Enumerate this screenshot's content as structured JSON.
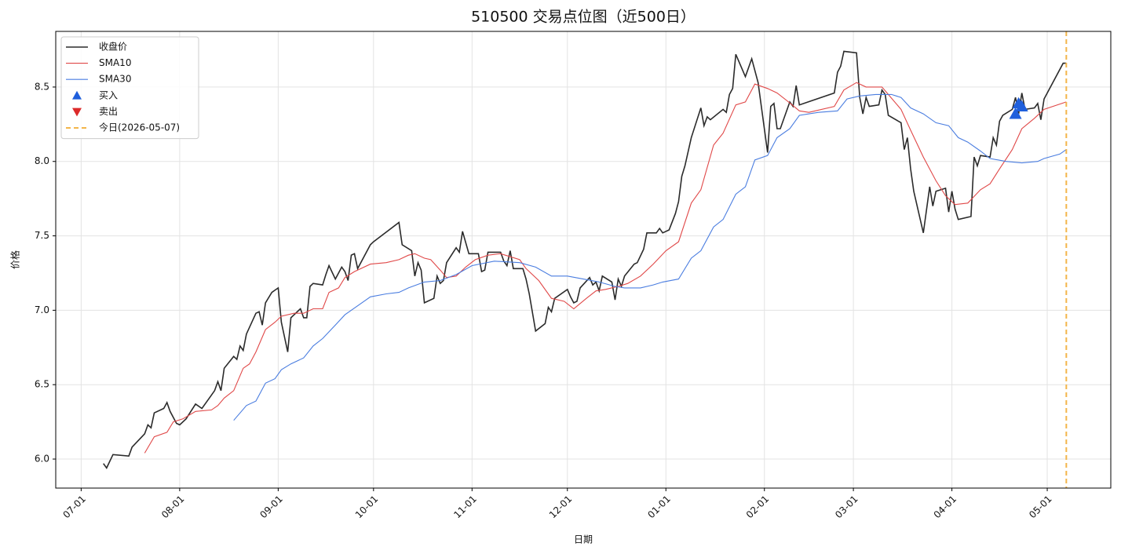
{
  "chart_data": {
    "type": "line",
    "title": "510500 交易点位图（近500日）",
    "x_label": "日期",
    "y_label": "价格",
    "xlim": [
      "06-23",
      "05-21"
    ],
    "xticks": [
      "07-01",
      "08-01",
      "09-01",
      "10-01",
      "11-01",
      "12-01",
      "01-01",
      "02-01",
      "03-01",
      "04-01",
      "05-01"
    ],
    "ylim": [
      5.805,
      8.874
    ],
    "yticks": [
      {
        "value": 6,
        "label": "6.0"
      },
      6.5,
      {
        "value": 7,
        "label": "7.0"
      },
      7.5,
      {
        "value": 8,
        "label": "8.0"
      },
      8.5
    ],
    "grid": true,
    "legend": "upper left",
    "series": [
      {
        "name": "收盘价",
        "color": "#2b2b2b",
        "x": [
          "07-08",
          "07-09",
          "07-11",
          "07-16",
          "07-17",
          "07-21",
          "07-22",
          "07-23",
          "07-24",
          "07-27",
          "07-28",
          "07-29",
          "07-31",
          "08-01",
          "08-03",
          "08-06",
          "08-08",
          "08-10",
          "08-12",
          "08-13",
          "08-14",
          "08-15",
          "08-18",
          "08-19",
          "08-20",
          "08-21",
          "08-22",
          "08-25",
          "08-26",
          "08-27",
          "08-28",
          "08-30",
          "09-01",
          "09-02",
          "09-04",
          "09-05",
          "09-08",
          "09-09",
          "09-10",
          "09-11",
          "09-12",
          "09-15",
          "09-16",
          "09-17",
          "09-19",
          "09-21",
          "09-22",
          "09-23",
          "09-24",
          "09-25",
          "09-26",
          "09-30",
          "10-01",
          "10-09",
          "10-10",
          "10-13",
          "10-14",
          "10-15",
          "10-16",
          "10-17",
          "10-20",
          "10-21",
          "10-22",
          "10-23",
          "10-24",
          "10-27",
          "10-28",
          "10-29",
          "10-31",
          "11-03",
          "11-04",
          "11-05",
          "11-06",
          "11-10",
          "11-11",
          "11-12",
          "11-13",
          "11-14",
          "11-17",
          "11-18",
          "11-19",
          "11-21",
          "11-24",
          "11-25",
          "11-26",
          "11-27",
          "12-01",
          "12-02",
          "12-03",
          "12-04",
          "12-05",
          "12-08",
          "12-09",
          "12-10",
          "12-11",
          "12-12",
          "12-15",
          "12-16",
          "12-17",
          "12-18",
          "12-19",
          "12-22",
          "12-23",
          "12-25",
          "12-26",
          "12-29",
          "12-30",
          "12-31",
          "01-02",
          "01-04",
          "01-05",
          "01-06",
          "01-07",
          "01-09",
          "01-12",
          "01-13",
          "01-14",
          "01-15",
          "01-19",
          "01-20",
          "01-21",
          "01-22",
          "01-23",
          "01-26",
          "01-28",
          "01-30",
          "02-02",
          "02-03",
          "02-04",
          "02-05",
          "02-06",
          "02-09",
          "02-10",
          "02-11",
          "02-12",
          "02-23",
          "02-24",
          "02-25",
          "02-26",
          "03-02",
          "03-03",
          "03-04",
          "03-05",
          "03-06",
          "03-09",
          "03-10",
          "03-11",
          "03-12",
          "03-16",
          "03-17",
          "03-18",
          "03-19",
          "03-20",
          "03-23",
          "03-25",
          "03-26",
          "03-27",
          "03-30",
          "03-31",
          "04-01",
          "04-02",
          "04-03",
          "04-07",
          "04-08",
          "04-09",
          "04-10",
          "04-13",
          "04-14",
          "04-15",
          "04-16",
          "04-17",
          "04-20",
          "04-21",
          "04-22",
          "04-23",
          "04-24",
          "04-27",
          "04-28",
          "04-29",
          "04-30",
          "05-06",
          "05-07"
        ],
        "values": [
          5.97,
          5.94,
          6.03,
          6.02,
          6.08,
          6.17,
          6.23,
          6.21,
          6.31,
          6.34,
          6.38,
          6.32,
          6.24,
          6.23,
          6.27,
          6.37,
          6.34,
          6.4,
          6.46,
          6.52,
          6.46,
          6.61,
          6.69,
          6.67,
          6.76,
          6.73,
          6.84,
          6.98,
          6.99,
          6.9,
          7.05,
          7.12,
          7.15,
          6.92,
          6.72,
          6.95,
          7.01,
          6.95,
          6.95,
          7.16,
          7.18,
          7.17,
          7.24,
          7.3,
          7.21,
          7.29,
          7.26,
          7.2,
          7.37,
          7.38,
          7.28,
          7.44,
          7.46,
          7.59,
          7.44,
          7.4,
          7.23,
          7.32,
          7.27,
          7.05,
          7.08,
          7.23,
          7.18,
          7.2,
          7.32,
          7.42,
          7.39,
          7.53,
          7.38,
          7.38,
          7.26,
          7.27,
          7.39,
          7.39,
          7.33,
          7.3,
          7.4,
          7.28,
          7.28,
          7.21,
          7.11,
          6.86,
          6.91,
          7.02,
          6.99,
          7.08,
          7.14,
          7.09,
          7.05,
          7.06,
          7.15,
          7.22,
          7.17,
          7.19,
          7.13,
          7.23,
          7.19,
          7.07,
          7.21,
          7.16,
          7.23,
          7.31,
          7.32,
          7.41,
          7.52,
          7.52,
          7.55,
          7.52,
          7.54,
          7.65,
          7.73,
          7.9,
          7.97,
          8.16,
          8.36,
          8.24,
          8.3,
          8.28,
          8.35,
          8.33,
          8.45,
          8.49,
          8.72,
          8.57,
          8.69,
          8.53,
          8.06,
          8.37,
          8.39,
          8.22,
          8.22,
          8.4,
          8.37,
          8.51,
          8.38,
          8.46,
          8.6,
          8.64,
          8.74,
          8.73,
          8.43,
          8.32,
          8.43,
          8.37,
          8.38,
          8.48,
          8.45,
          8.31,
          8.26,
          8.08,
          8.16,
          7.95,
          7.8,
          7.52,
          7.83,
          7.7,
          7.8,
          7.82,
          7.66,
          7.8,
          7.68,
          7.61,
          7.63,
          8.03,
          7.97,
          8.04,
          8.03,
          8.16,
          8.11,
          8.27,
          8.31,
          8.35,
          8.43,
          8.32,
          8.46,
          8.35,
          8.36,
          8.39,
          8.28,
          8.42,
          8.66,
          8.66
        ]
      },
      {
        "name": "SMA10",
        "color": "#e04848",
        "x": [
          "07-21",
          "07-24",
          "07-28",
          "07-30",
          "08-02",
          "08-06",
          "08-11",
          "08-13",
          "08-15",
          "08-18",
          "08-21",
          "08-23",
          "08-25",
          "08-28",
          "08-31",
          "09-02",
          "09-06",
          "09-09",
          "09-12",
          "09-15",
          "09-17",
          "09-20",
          "09-22",
          "09-25",
          "09-30",
          "10-05",
          "10-09",
          "10-12",
          "10-14",
          "10-17",
          "10-19",
          "10-22",
          "10-24",
          "10-27",
          "10-30",
          "11-02",
          "11-06",
          "11-10",
          "11-16",
          "11-18",
          "11-22",
          "11-26",
          "11-30",
          "12-03",
          "12-07",
          "12-10",
          "12-13",
          "12-17",
          "12-20",
          "12-24",
          "12-28",
          "01-01",
          "01-05",
          "01-09",
          "01-12",
          "01-16",
          "01-19",
          "01-23",
          "01-26",
          "01-29",
          "02-02",
          "02-05",
          "02-08",
          "02-12",
          "02-15",
          "02-23",
          "02-26",
          "03-02",
          "03-05",
          "03-10",
          "03-12",
          "03-16",
          "03-19",
          "03-23",
          "03-27",
          "03-30",
          "04-02",
          "04-06",
          "04-10",
          "04-13",
          "04-16",
          "04-20",
          "04-23",
          "04-27",
          "04-30",
          "05-07"
        ],
        "values": [
          6.04,
          6.15,
          6.18,
          6.25,
          6.27,
          6.32,
          6.33,
          6.36,
          6.41,
          6.46,
          6.61,
          6.64,
          6.72,
          6.87,
          6.92,
          6.96,
          6.98,
          6.98,
          7.01,
          7.01,
          7.12,
          7.15,
          7.22,
          7.26,
          7.31,
          7.32,
          7.34,
          7.37,
          7.38,
          7.35,
          7.34,
          7.27,
          7.22,
          7.23,
          7.29,
          7.34,
          7.37,
          7.38,
          7.34,
          7.28,
          7.2,
          7.08,
          7.06,
          7.01,
          7.08,
          7.13,
          7.14,
          7.16,
          7.18,
          7.23,
          7.31,
          7.4,
          7.46,
          7.72,
          7.81,
          8.11,
          8.19,
          8.38,
          8.4,
          8.52,
          8.49,
          8.46,
          8.41,
          8.34,
          8.33,
          8.37,
          8.48,
          8.53,
          8.5,
          8.5,
          8.45,
          8.35,
          8.21,
          8.03,
          7.87,
          7.77,
          7.71,
          7.72,
          7.81,
          7.85,
          7.95,
          8.08,
          8.22,
          8.29,
          8.35,
          8.4
        ]
      },
      {
        "name": "SMA30",
        "color": "#4a7de0",
        "x": [
          "08-18",
          "08-22",
          "08-25",
          "08-28",
          "08-31",
          "09-02",
          "09-05",
          "09-09",
          "09-12",
          "09-15",
          "09-19",
          "09-22",
          "09-26",
          "09-30",
          "10-05",
          "10-09",
          "10-12",
          "10-17",
          "10-22",
          "10-27",
          "11-01",
          "11-08",
          "11-16",
          "11-21",
          "11-26",
          "12-01",
          "12-06",
          "12-11",
          "12-16",
          "12-19",
          "12-24",
          "12-28",
          "12-31",
          "01-05",
          "01-09",
          "01-12",
          "01-16",
          "01-19",
          "01-23",
          "01-26",
          "01-29",
          "02-02",
          "02-05",
          "02-09",
          "02-12",
          "02-18",
          "02-24",
          "02-27",
          "03-03",
          "03-08",
          "03-13",
          "03-16",
          "03-19",
          "03-23",
          "03-27",
          "03-31",
          "04-03",
          "04-06",
          "04-10",
          "04-13",
          "04-18",
          "04-23",
          "04-28",
          "04-30",
          "05-05",
          "05-07"
        ],
        "values": [
          6.26,
          6.36,
          6.39,
          6.51,
          6.54,
          6.6,
          6.64,
          6.68,
          6.76,
          6.81,
          6.9,
          6.97,
          7.03,
          7.09,
          7.11,
          7.12,
          7.15,
          7.19,
          7.2,
          7.24,
          7.3,
          7.33,
          7.32,
          7.29,
          7.23,
          7.23,
          7.21,
          7.19,
          7.16,
          7.15,
          7.15,
          7.17,
          7.19,
          7.21,
          7.35,
          7.4,
          7.56,
          7.61,
          7.78,
          7.83,
          8.01,
          8.04,
          8.16,
          8.22,
          8.31,
          8.33,
          8.34,
          8.42,
          8.44,
          8.45,
          8.45,
          8.43,
          8.36,
          8.32,
          8.26,
          8.24,
          8.16,
          8.13,
          8.07,
          8.02,
          8.0,
          7.99,
          8.0,
          8.02,
          8.05,
          8.08
        ]
      }
    ],
    "markers": [
      {
        "name": "买入",
        "color": "#1f5fdc",
        "marker": "up",
        "x": [
          "04-21",
          "04-22",
          "04-23"
        ],
        "values": [
          8.32,
          8.39,
          8.37
        ]
      },
      {
        "name": "卖出",
        "color": "#dc2a2a",
        "marker": "down",
        "x": [],
        "values": []
      }
    ],
    "today": {
      "label": "今日(2026-05-07)",
      "x": "05-07",
      "color": "#f3b54a"
    }
  }
}
